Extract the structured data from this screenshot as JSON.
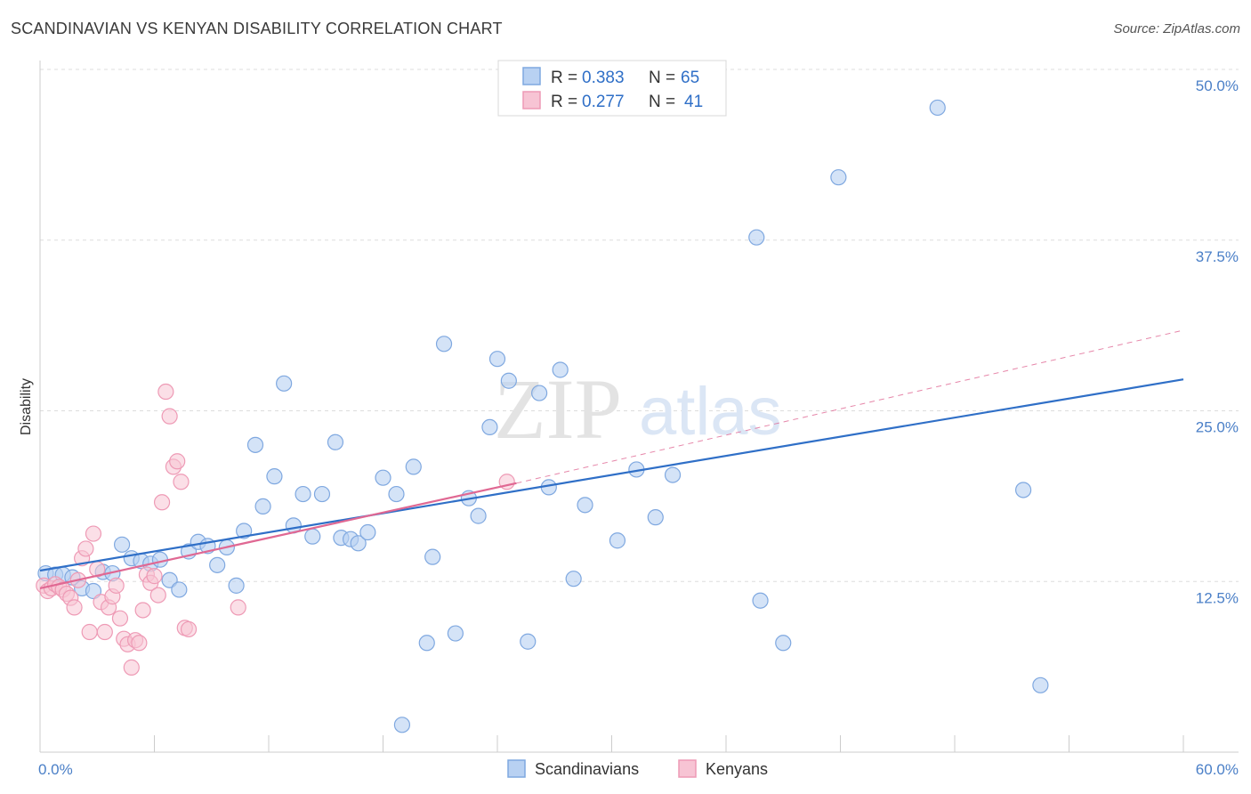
{
  "title": "SCANDINAVIAN VS KENYAN DISABILITY CORRELATION CHART",
  "source": "Source: ZipAtlas.com",
  "watermark": {
    "zip": "ZIP",
    "atlas": "atlas"
  },
  "colors": {
    "blue_fill": "#b8d1f2",
    "blue_stroke": "#7fa8e0",
    "blue_line": "#2f6fc7",
    "pink_fill": "#f7c4d4",
    "pink_stroke": "#ee9ab5",
    "pink_line": "#e06893",
    "axis_label": "#4a7fc7",
    "grid": "#dddddd"
  },
  "legend": {
    "items": [
      {
        "r_label": "R =",
        "r_value": "0.383",
        "n_label": "N =",
        "n_value": "65"
      },
      {
        "r_label": "R =",
        "r_value": "0.277",
        "n_label": "N =",
        "n_value": "41"
      }
    ]
  },
  "chart_data": {
    "type": "scatter",
    "title": "SCANDINAVIAN VS KENYAN DISABILITY CORRELATION CHART",
    "xlabel": "",
    "ylabel": "Disability",
    "xlim": [
      0,
      60
    ],
    "ylim": [
      0,
      50
    ],
    "x_tick_labels": [
      "0.0%",
      "60.0%"
    ],
    "y_ticks": [
      12.5,
      25.0,
      37.5,
      50.0
    ],
    "y_tick_labels": [
      "12.5%",
      "25.0%",
      "37.5%",
      "50.0%"
    ],
    "grid": true,
    "legend_position": "top-center",
    "series": [
      {
        "name": "Scandinavians",
        "color": "#b8d1f2",
        "points": [
          [
            0.3,
            13.1
          ],
          [
            0.8,
            13.0
          ],
          [
            1.2,
            13.0
          ],
          [
            1.7,
            12.8
          ],
          [
            2.2,
            12.0
          ],
          [
            2.8,
            11.8
          ],
          [
            3.3,
            13.2
          ],
          [
            3.8,
            13.1
          ],
          [
            4.3,
            15.2
          ],
          [
            4.8,
            14.2
          ],
          [
            5.3,
            14.0
          ],
          [
            5.8,
            13.8
          ],
          [
            6.3,
            14.1
          ],
          [
            6.8,
            12.6
          ],
          [
            7.3,
            11.9
          ],
          [
            7.8,
            14.7
          ],
          [
            8.3,
            15.4
          ],
          [
            8.8,
            15.1
          ],
          [
            9.3,
            13.7
          ],
          [
            9.8,
            15.0
          ],
          [
            10.3,
            12.2
          ],
          [
            10.7,
            16.2
          ],
          [
            11.3,
            22.5
          ],
          [
            11.7,
            18.0
          ],
          [
            12.3,
            20.2
          ],
          [
            12.8,
            27.0
          ],
          [
            13.3,
            16.6
          ],
          [
            13.8,
            18.9
          ],
          [
            14.3,
            15.8
          ],
          [
            14.8,
            18.9
          ],
          [
            15.5,
            22.7
          ],
          [
            15.8,
            15.7
          ],
          [
            16.3,
            15.6
          ],
          [
            16.7,
            15.3
          ],
          [
            17.2,
            16.1
          ],
          [
            18.0,
            20.1
          ],
          [
            18.7,
            18.9
          ],
          [
            19.6,
            20.9
          ],
          [
            20.3,
            8.0
          ],
          [
            20.6,
            14.3
          ],
          [
            21.2,
            29.9
          ],
          [
            21.8,
            8.7
          ],
          [
            22.5,
            18.6
          ],
          [
            23.0,
            17.3
          ],
          [
            23.6,
            23.8
          ],
          [
            24.0,
            28.8
          ],
          [
            24.6,
            27.2
          ],
          [
            25.6,
            8.1
          ],
          [
            26.2,
            26.3
          ],
          [
            26.7,
            19.4
          ],
          [
            27.3,
            28.0
          ],
          [
            28.0,
            12.7
          ],
          [
            28.6,
            18.1
          ],
          [
            30.3,
            15.5
          ],
          [
            31.3,
            20.7
          ],
          [
            32.3,
            17.2
          ],
          [
            33.2,
            20.3
          ],
          [
            37.6,
            37.7
          ],
          [
            37.8,
            11.1
          ],
          [
            39.0,
            8.0
          ],
          [
            41.9,
            42.1
          ],
          [
            47.1,
            47.2
          ],
          [
            51.6,
            19.2
          ],
          [
            52.5,
            4.9
          ],
          [
            19.0,
            2.0
          ]
        ]
      },
      {
        "name": "Kenyans",
        "color": "#f7c4d4",
        "points": [
          [
            0.2,
            12.2
          ],
          [
            0.4,
            11.8
          ],
          [
            0.6,
            12.0
          ],
          [
            0.8,
            12.3
          ],
          [
            1.0,
            12.1
          ],
          [
            1.2,
            11.9
          ],
          [
            1.4,
            11.6
          ],
          [
            1.6,
            11.3
          ],
          [
            1.8,
            10.6
          ],
          [
            2.0,
            12.6
          ],
          [
            2.2,
            14.2
          ],
          [
            2.4,
            14.9
          ],
          [
            2.6,
            8.8
          ],
          [
            2.8,
            16.0
          ],
          [
            3.0,
            13.4
          ],
          [
            3.2,
            11.0
          ],
          [
            3.4,
            8.8
          ],
          [
            3.6,
            10.6
          ],
          [
            3.8,
            11.4
          ],
          [
            4.0,
            12.2
          ],
          [
            4.2,
            9.8
          ],
          [
            4.4,
            8.3
          ],
          [
            4.6,
            7.9
          ],
          [
            4.8,
            6.2
          ],
          [
            5.0,
            8.2
          ],
          [
            5.2,
            8.0
          ],
          [
            5.4,
            10.4
          ],
          [
            5.6,
            13.0
          ],
          [
            5.8,
            12.4
          ],
          [
            6.0,
            12.9
          ],
          [
            6.2,
            11.5
          ],
          [
            6.4,
            18.3
          ],
          [
            6.6,
            26.4
          ],
          [
            6.8,
            24.6
          ],
          [
            7.0,
            20.9
          ],
          [
            7.2,
            21.3
          ],
          [
            7.4,
            19.8
          ],
          [
            7.6,
            9.1
          ],
          [
            7.8,
            9.0
          ],
          [
            10.4,
            10.6
          ],
          [
            24.5,
            19.8
          ]
        ]
      }
    ],
    "trend_lines": [
      {
        "series": "Scandinavians",
        "from": [
          0,
          13.3
        ],
        "to": [
          60,
          27.3
        ],
        "style": "solid"
      },
      {
        "series": "Kenyans",
        "from": [
          0,
          12.0
        ],
        "to": [
          25,
          19.7
        ],
        "style": "solid"
      },
      {
        "series": "Kenyans",
        "from": [
          25,
          19.7
        ],
        "to": [
          60,
          30.9
        ],
        "style": "dashed"
      }
    ]
  }
}
